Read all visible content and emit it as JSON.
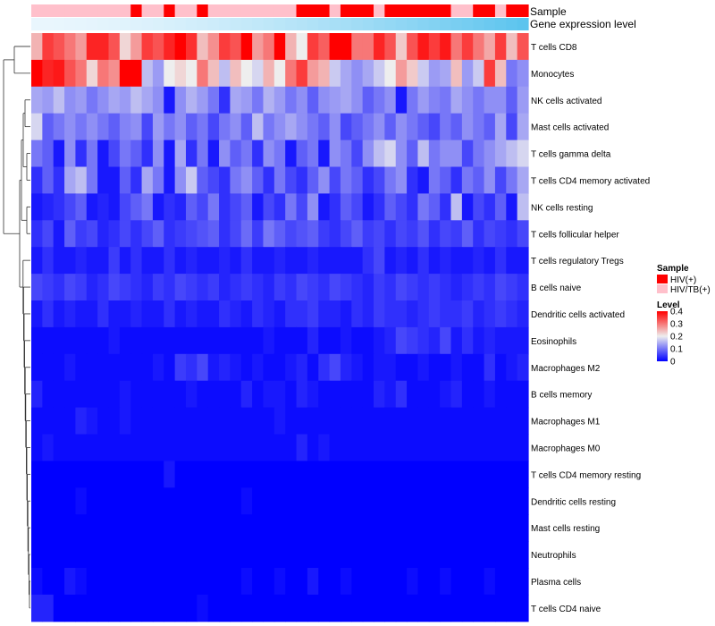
{
  "chart_data": {
    "type": "heatmap",
    "title": "",
    "annotation_labels": {
      "sample": "Sample",
      "expression": "Gene expression level"
    },
    "rows": [
      "T cells CD8",
      "Monocytes",
      "NK cells activated",
      "Mast cells activated",
      "T cells gamma delta",
      "T cells CD4 memory activated",
      "NK cells resting",
      "T cells follicular helper",
      "T cells regulatory  Tregs",
      "B cells naive",
      "Dendritic cells activated",
      "Eosinophils",
      "Macrophages M2",
      "B cells memory",
      "Macrophages M1",
      "Macrophages M0",
      "T cells CD4 memory resting",
      "Dendritic cells resting",
      "Mast cells resting",
      "Neutrophils",
      "Plasma cells",
      "T cells CD4 naive"
    ],
    "n_columns": 45,
    "sample_groups": [
      "HIV/TB(+)",
      "HIV/TB(+)",
      "HIV/TB(+)",
      "HIV/TB(+)",
      "HIV/TB(+)",
      "HIV/TB(+)",
      "HIV/TB(+)",
      "HIV/TB(+)",
      "HIV/TB(+)",
      "HIV(+)",
      "HIV/TB(+)",
      "HIV/TB(+)",
      "HIV(+)",
      "HIV/TB(+)",
      "HIV/TB(+)",
      "HIV(+)",
      "HIV/TB(+)",
      "HIV/TB(+)",
      "HIV/TB(+)",
      "HIV/TB(+)",
      "HIV/TB(+)",
      "HIV/TB(+)",
      "HIV/TB(+)",
      "HIV/TB(+)",
      "HIV(+)",
      "HIV(+)",
      "HIV(+)",
      "HIV/TB(+)",
      "HIV(+)",
      "HIV(+)",
      "HIV(+)",
      "HIV/TB(+)",
      "HIV(+)",
      "HIV(+)",
      "HIV(+)",
      "HIV(+)",
      "HIV(+)",
      "HIV(+)",
      "HIV/TB(+)",
      "HIV/TB(+)",
      "HIV(+)",
      "HIV(+)",
      "HIV/TB(+)",
      "HIV(+)",
      "HIV(+)"
    ],
    "expression_trend": "increasing from left to right",
    "values": [
      [
        0.25,
        0.35,
        0.33,
        0.3,
        0.27,
        0.37,
        0.37,
        0.33,
        0.22,
        0.27,
        0.35,
        0.33,
        0.37,
        0.4,
        0.36,
        0.24,
        0.28,
        0.35,
        0.33,
        0.4,
        0.27,
        0.3,
        0.4,
        0.25,
        0.2,
        0.35,
        0.32,
        0.4,
        0.4,
        0.3,
        0.3,
        0.37,
        0.33,
        0.23,
        0.33,
        0.38,
        0.35,
        0.38,
        0.3,
        0.35,
        0.3,
        0.26,
        0.35,
        0.24,
        0.33
      ],
      [
        0.4,
        0.37,
        0.38,
        0.33,
        0.3,
        0.22,
        0.3,
        0.28,
        0.4,
        0.4,
        0.16,
        0.13,
        0.2,
        0.22,
        0.2,
        0.3,
        0.24,
        0.16,
        0.24,
        0.2,
        0.18,
        0.25,
        0.2,
        0.3,
        0.35,
        0.27,
        0.25,
        0.17,
        0.14,
        0.12,
        0.14,
        0.17,
        0.2,
        0.27,
        0.23,
        0.17,
        0.13,
        0.14,
        0.24,
        0.13,
        0.17,
        0.35,
        0.24,
        0.1,
        0.12
      ],
      [
        0.14,
        0.13,
        0.16,
        0.12,
        0.13,
        0.1,
        0.12,
        0.14,
        0.13,
        0.16,
        0.14,
        0.12,
        0.02,
        0.12,
        0.15,
        0.13,
        0.1,
        0.04,
        0.14,
        0.13,
        0.1,
        0.15,
        0.13,
        0.1,
        0.12,
        0.08,
        0.12,
        0.13,
        0.14,
        0.12,
        0.08,
        0.1,
        0.12,
        0.02,
        0.1,
        0.13,
        0.11,
        0.1,
        0.14,
        0.12,
        0.1,
        0.12,
        0.12,
        0.08,
        0.13
      ],
      [
        0.18,
        0.08,
        0.1,
        0.12,
        0.1,
        0.12,
        0.1,
        0.08,
        0.11,
        0.12,
        0.06,
        0.13,
        0.1,
        0.12,
        0.08,
        0.1,
        0.06,
        0.1,
        0.12,
        0.08,
        0.16,
        0.1,
        0.12,
        0.14,
        0.12,
        0.1,
        0.08,
        0.12,
        0.06,
        0.08,
        0.1,
        0.12,
        0.08,
        0.12,
        0.1,
        0.08,
        0.06,
        0.1,
        0.08,
        0.12,
        0.1,
        0.08,
        0.14,
        0.06,
        0.14
      ],
      [
        0.1,
        0.08,
        0.02,
        0.12,
        0.04,
        0.1,
        0.02,
        0.06,
        0.1,
        0.08,
        0.04,
        0.12,
        0.02,
        0.14,
        0.04,
        0.1,
        0.02,
        0.12,
        0.08,
        0.1,
        0.04,
        0.12,
        0.1,
        0.02,
        0.08,
        0.1,
        0.02,
        0.12,
        0.1,
        0.06,
        0.12,
        0.16,
        0.18,
        0.12,
        0.08,
        0.16,
        0.1,
        0.12,
        0.12,
        0.06,
        0.1,
        0.12,
        0.14,
        0.16,
        0.18
      ],
      [
        0.04,
        0.08,
        0.04,
        0.14,
        0.16,
        0.1,
        0.02,
        0.02,
        0.08,
        0.04,
        0.14,
        0.1,
        0.02,
        0.12,
        0.17,
        0.08,
        0.06,
        0.04,
        0.1,
        0.12,
        0.08,
        0.04,
        0.1,
        0.06,
        0.04,
        0.08,
        0.12,
        0.06,
        0.1,
        0.08,
        0.04,
        0.06,
        0.1,
        0.12,
        0.04,
        0.02,
        0.1,
        0.08,
        0.04,
        0.1,
        0.08,
        0.12,
        0.06,
        0.1,
        0.14
      ],
      [
        0.02,
        0.03,
        0.04,
        0.06,
        0.08,
        0.02,
        0.03,
        0.02,
        0.06,
        0.08,
        0.1,
        0.02,
        0.04,
        0.03,
        0.08,
        0.06,
        0.1,
        0.04,
        0.06,
        0.08,
        0.02,
        0.06,
        0.04,
        0.1,
        0.06,
        0.12,
        0.02,
        0.04,
        0.08,
        0.06,
        0.02,
        0.04,
        0.08,
        0.06,
        0.04,
        0.1,
        0.08,
        0.04,
        0.16,
        0.02,
        0.06,
        0.04,
        0.08,
        0.02,
        0.16
      ],
      [
        0.04,
        0.06,
        0.02,
        0.08,
        0.05,
        0.06,
        0.03,
        0.04,
        0.06,
        0.04,
        0.06,
        0.08,
        0.04,
        0.05,
        0.06,
        0.07,
        0.08,
        0.04,
        0.06,
        0.09,
        0.05,
        0.1,
        0.08,
        0.06,
        0.07,
        0.08,
        0.05,
        0.04,
        0.06,
        0.08,
        0.05,
        0.06,
        0.04,
        0.06,
        0.05,
        0.07,
        0.04,
        0.06,
        0.05,
        0.08,
        0.04,
        0.06,
        0.05,
        0.04,
        0.06
      ],
      [
        0.02,
        0.04,
        0.02,
        0.02,
        0.03,
        0.02,
        0.02,
        0.05,
        0.02,
        0.04,
        0.02,
        0.02,
        0.04,
        0.02,
        0.03,
        0.02,
        0.02,
        0.03,
        0.02,
        0.04,
        0.02,
        0.02,
        0.03,
        0.02,
        0.02,
        0.03,
        0.02,
        0.02,
        0.02,
        0.02,
        0.04,
        0.06,
        0.02,
        0.03,
        0.02,
        0.04,
        0.02,
        0.03,
        0.02,
        0.02,
        0.03,
        0.02,
        0.04,
        0.02,
        0.02
      ],
      [
        0.06,
        0.05,
        0.04,
        0.06,
        0.05,
        0.03,
        0.04,
        0.06,
        0.05,
        0.04,
        0.03,
        0.05,
        0.04,
        0.06,
        0.05,
        0.04,
        0.05,
        0.03,
        0.04,
        0.05,
        0.04,
        0.03,
        0.05,
        0.04,
        0.06,
        0.05,
        0.04,
        0.06,
        0.05,
        0.04,
        0.03,
        0.05,
        0.04,
        0.06,
        0.05,
        0.04,
        0.05,
        0.04,
        0.03,
        0.04,
        0.05,
        0.04,
        0.06,
        0.05,
        0.04
      ],
      [
        0.02,
        0.04,
        0.02,
        0.03,
        0.02,
        0.02,
        0.04,
        0.02,
        0.02,
        0.03,
        0.02,
        0.02,
        0.04,
        0.02,
        0.03,
        0.02,
        0.02,
        0.04,
        0.03,
        0.02,
        0.04,
        0.03,
        0.02,
        0.04,
        0.04,
        0.05,
        0.03,
        0.03,
        0.02,
        0.04,
        0.03,
        0.05,
        0.04,
        0.04,
        0.03,
        0.04,
        0.05,
        0.04,
        0.04,
        0.05,
        0.03,
        0.04,
        0.05,
        0.04,
        0.03
      ],
      [
        0.01,
        0.01,
        0.01,
        0.01,
        0.01,
        0.01,
        0.01,
        0.02,
        0.01,
        0.01,
        0.01,
        0.01,
        0.01,
        0.01,
        0.01,
        0.01,
        0.01,
        0.01,
        0.01,
        0.01,
        0.01,
        0.02,
        0.01,
        0.01,
        0.01,
        0.03,
        0.01,
        0.01,
        0.02,
        0.01,
        0.01,
        0.02,
        0.03,
        0.06,
        0.05,
        0.04,
        0.03,
        0.06,
        0.02,
        0.04,
        0.02,
        0.03,
        0.02,
        0.02,
        0.02
      ],
      [
        0.01,
        0.01,
        0.01,
        0.02,
        0.01,
        0.01,
        0.01,
        0.01,
        0.01,
        0.01,
        0.01,
        0.02,
        0.01,
        0.05,
        0.04,
        0.06,
        0.02,
        0.03,
        0.02,
        0.01,
        0.02,
        0.01,
        0.01,
        0.02,
        0.03,
        0.01,
        0.04,
        0.06,
        0.03,
        0.02,
        0.01,
        0.02,
        0.02,
        0.01,
        0.01,
        0.02,
        0.01,
        0.01,
        0.02,
        0.01,
        0.01,
        0.04,
        0.01,
        0.02,
        0.03
      ],
      [
        0.03,
        0.01,
        0.01,
        0.01,
        0.01,
        0.01,
        0.01,
        0.01,
        0.02,
        0.01,
        0.01,
        0.01,
        0.01,
        0.01,
        0.02,
        0.01,
        0.01,
        0.01,
        0.01,
        0.03,
        0.01,
        0.02,
        0.02,
        0.01,
        0.03,
        0.02,
        0.01,
        0.01,
        0.01,
        0.01,
        0.01,
        0.03,
        0.02,
        0.04,
        0.01,
        0.01,
        0.01,
        0.02,
        0.03,
        0.01,
        0.01,
        0.02,
        0.01,
        0.01,
        0.01
      ],
      [
        0.01,
        0.01,
        0.01,
        0.01,
        0.03,
        0.02,
        0.01,
        0.01,
        0.02,
        0.01,
        0.01,
        0.01,
        0.01,
        0.01,
        0.01,
        0.01,
        0.01,
        0.01,
        0.01,
        0.01,
        0.01,
        0.01,
        0.02,
        0.01,
        0.01,
        0.01,
        0.01,
        0.01,
        0.01,
        0.01,
        0.01,
        0.01,
        0.01,
        0.01,
        0.01,
        0.01,
        0.01,
        0.01,
        0.01,
        0.01,
        0.01,
        0.01,
        0.01,
        0.01,
        0.01
      ],
      [
        0.01,
        0.02,
        0.01,
        0.01,
        0.01,
        0.01,
        0.01,
        0.01,
        0.01,
        0.01,
        0.01,
        0.01,
        0.01,
        0.01,
        0.01,
        0.01,
        0.01,
        0.01,
        0.01,
        0.01,
        0.01,
        0.01,
        0.01,
        0.01,
        0.03,
        0.01,
        0.02,
        0.01,
        0.01,
        0.01,
        0.01,
        0.01,
        0.01,
        0.01,
        0.01,
        0.01,
        0.01,
        0.01,
        0.01,
        0.01,
        0.01,
        0.01,
        0.01,
        0.01,
        0.01
      ],
      [
        0.0,
        0.0,
        0.0,
        0.0,
        0.0,
        0.0,
        0.0,
        0.0,
        0.0,
        0.0,
        0.0,
        0.0,
        0.02,
        0.0,
        0.0,
        0.0,
        0.0,
        0.0,
        0.0,
        0.0,
        0.0,
        0.0,
        0.0,
        0.0,
        0.0,
        0.0,
        0.0,
        0.0,
        0.0,
        0.0,
        0.0,
        0.0,
        0.0,
        0.0,
        0.0,
        0.0,
        0.0,
        0.0,
        0.0,
        0.0,
        0.0,
        0.0,
        0.0,
        0.0,
        0.0
      ],
      [
        0.0,
        0.0,
        0.0,
        0.0,
        0.01,
        0.0,
        0.0,
        0.0,
        0.0,
        0.0,
        0.0,
        0.0,
        0.0,
        0.0,
        0.0,
        0.0,
        0.0,
        0.0,
        0.0,
        0.01,
        0.0,
        0.0,
        0.0,
        0.0,
        0.0,
        0.0,
        0.0,
        0.0,
        0.0,
        0.0,
        0.0,
        0.0,
        0.0,
        0.0,
        0.0,
        0.0,
        0.0,
        0.0,
        0.0,
        0.0,
        0.0,
        0.0,
        0.0,
        0.0,
        0.0
      ],
      [
        0.0,
        0.0,
        0.0,
        0.0,
        0.0,
        0.0,
        0.0,
        0.0,
        0.0,
        0.0,
        0.0,
        0.0,
        0.0,
        0.0,
        0.0,
        0.0,
        0.0,
        0.0,
        0.0,
        0.0,
        0.0,
        0.0,
        0.0,
        0.0,
        0.0,
        0.0,
        0.0,
        0.0,
        0.0,
        0.0,
        0.0,
        0.0,
        0.0,
        0.0,
        0.0,
        0.0,
        0.0,
        0.0,
        0.0,
        0.0,
        0.0,
        0.0,
        0.0,
        0.0,
        0.0
      ],
      [
        0.0,
        0.0,
        0.0,
        0.0,
        0.0,
        0.0,
        0.0,
        0.0,
        0.0,
        0.0,
        0.0,
        0.0,
        0.0,
        0.0,
        0.0,
        0.0,
        0.0,
        0.0,
        0.0,
        0.0,
        0.0,
        0.0,
        0.0,
        0.0,
        0.0,
        0.0,
        0.0,
        0.0,
        0.0,
        0.0,
        0.0,
        0.0,
        0.0,
        0.0,
        0.0,
        0.0,
        0.0,
        0.0,
        0.0,
        0.0,
        0.0,
        0.0,
        0.0,
        0.0,
        0.0
      ],
      [
        0.01,
        0.0,
        0.0,
        0.02,
        0.01,
        0.0,
        0.0,
        0.0,
        0.0,
        0.0,
        0.0,
        0.0,
        0.0,
        0.0,
        0.0,
        0.0,
        0.0,
        0.0,
        0.0,
        0.01,
        0.0,
        0.0,
        0.01,
        0.0,
        0.0,
        0.02,
        0.0,
        0.0,
        0.01,
        0.0,
        0.0,
        0.0,
        0.0,
        0.0,
        0.01,
        0.0,
        0.0,
        0.01,
        0.0,
        0.0,
        0.0,
        0.01,
        0.0,
        0.0,
        0.0
      ],
      [
        0.03,
        0.03,
        0.0,
        0.0,
        0.0,
        0.0,
        0.0,
        0.0,
        0.0,
        0.0,
        0.0,
        0.0,
        0.0,
        0.0,
        0.0,
        0.01,
        0.0,
        0.0,
        0.0,
        0.0,
        0.0,
        0.0,
        0.0,
        0.0,
        0.0,
        0.0,
        0.0,
        0.0,
        0.0,
        0.0,
        0.0,
        0.0,
        0.0,
        0.0,
        0.0,
        0.0,
        0.0,
        0.0,
        0.0,
        0.0,
        0.0,
        0.0,
        0.0,
        0.0,
        0.0
      ]
    ],
    "legend": {
      "sample_title": "Sample",
      "sample_entries": [
        {
          "label": "HIV(+)",
          "color": "#FF0000"
        },
        {
          "label": "HIV/TB(+)",
          "color": "#FFC0CB"
        }
      ],
      "level_title": "Level",
      "level_ticks": [
        "0.4",
        "0.3",
        "0.2",
        "0.1",
        "0"
      ],
      "level_range": [
        0,
        0.4
      ],
      "placement": "right"
    },
    "colors": {
      "low": "#0000FF",
      "mid": "#EEEEEE",
      "high": "#FF0000",
      "expression_low": "#E9F6FD",
      "expression_high": "#5CC4EE"
    }
  }
}
